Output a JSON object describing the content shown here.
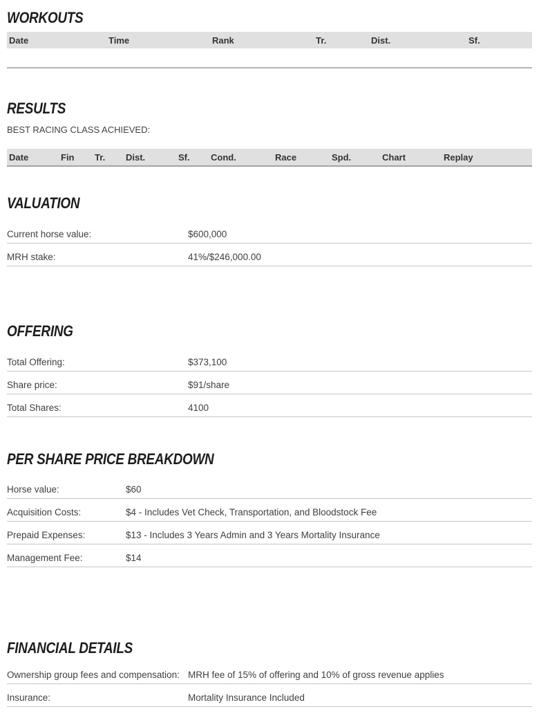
{
  "colors": {
    "title_text": "#1d1d1d",
    "body_text": "#3f3f3f",
    "table_header_bg": "#e0e0e0",
    "divider": "#c6c6c6"
  },
  "sections": {
    "workouts": {
      "title": "WORKOUTS",
      "columns": [
        "Date",
        "Time",
        "Rank",
        "Tr.",
        "Dist.",
        "Sf."
      ]
    },
    "results": {
      "title": "RESULTS",
      "subtitle": "BEST RACING CLASS ACHIEVED:",
      "columns": [
        "Date",
        "Fin",
        "Tr.",
        "Dist.",
        "Sf.",
        "Cond.",
        "Race",
        "Spd.",
        "Chart",
        "Replay"
      ]
    },
    "valuation": {
      "title": "VALUATION",
      "rows": [
        {
          "label": "Current horse value:",
          "value": "$600,000"
        },
        {
          "label": "MRH stake:",
          "value": "41%/$246,000.00"
        }
      ]
    },
    "offering": {
      "title": "OFFERING",
      "rows": [
        {
          "label": "Total Offering:",
          "value": "$373,100"
        },
        {
          "label": "Share price:",
          "value": "$91/share"
        },
        {
          "label": "Total Shares:",
          "value": "4100"
        }
      ]
    },
    "per_share": {
      "title": "PER SHARE PRICE BREAKDOWN",
      "rows": [
        {
          "label": "Horse value:",
          "value": "$60"
        },
        {
          "label": "Acquisition Costs:",
          "value": "$4 - Includes Vet Check, Transportation, and Bloodstock Fee"
        },
        {
          "label": "Prepaid Expenses:",
          "value": "$13 - Includes 3 Years Admin and 3 Years Mortality Insurance"
        },
        {
          "label": "Management Fee:",
          "value": "$14"
        }
      ]
    },
    "financial": {
      "title": "FINANCIAL DETAILS",
      "rows": [
        {
          "label": "Ownership group fees and compensation:",
          "value": "MRH fee of 15% of offering and 10% of gross revenue applies"
        },
        {
          "label": "Insurance:",
          "value": "Mortality Insurance Included"
        }
      ]
    }
  }
}
